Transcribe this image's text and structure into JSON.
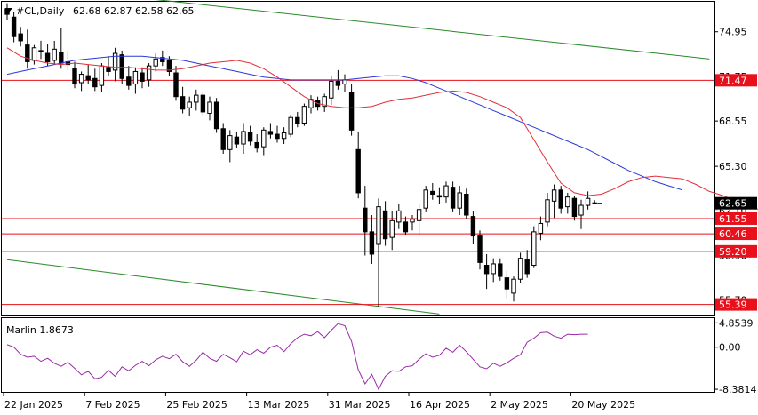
{
  "header": {
    "symbol": "#CL,Daily",
    "ohlc": "62.68 62.87 62.58 62.65"
  },
  "indicator": {
    "name_label": "Marlin 1.8673",
    "axis_ticks": [
      "4.8539",
      "0.00",
      "-8.3814"
    ]
  },
  "colors": {
    "bull_candle": "#ffffff",
    "bear_candle": "#000000",
    "ma_fast": "#e0303a",
    "ma_slow": "#2a38d8",
    "level_line": "#e8101a",
    "channel": "#2a8a2a",
    "oscillator": "#9a2aa8",
    "price_tag_bg": "#000000",
    "level_tag_bg": "#e8101a"
  },
  "chart_data": [
    {
      "type": "candlestick",
      "title": "#CL,Daily",
      "y_ticks": [
        "74.95",
        "71.75",
        "68.55",
        "65.30",
        "62.10",
        "58.90",
        "55.70"
      ],
      "ylim": [
        54.6,
        77.1
      ],
      "x_ticks": [
        "22 Jan 2025",
        "7 Feb 2025",
        "25 Feb 2025",
        "13 Mar 2025",
        "31 Mar 2025",
        "16 Apr 2025",
        "2 May 2025",
        "20 May 2025"
      ],
      "current_price": "62.65",
      "levels": [
        {
          "value": 71.47,
          "label": "71.47"
        },
        {
          "value": 61.55,
          "label": "61.55"
        },
        {
          "value": 60.46,
          "label": "60.46"
        },
        {
          "value": 59.2,
          "label": "59.20"
        },
        {
          "value": 55.39,
          "label": "55.39"
        }
      ],
      "channel_lines": [
        {
          "from": [
            0,
            78.4
          ],
          "to": [
            104,
            73.0
          ]
        },
        {
          "from": [
            0,
            58.6
          ],
          "to": [
            64,
            54.7
          ]
        }
      ],
      "candles": [
        [
          76.6,
          77.0,
          75.8,
          76.2
        ],
        [
          76.0,
          76.4,
          74.2,
          74.6
        ],
        [
          74.8,
          75.3,
          73.9,
          74.3
        ],
        [
          74.0,
          75.1,
          72.3,
          72.8
        ],
        [
          72.9,
          74.0,
          72.6,
          73.8
        ],
        [
          73.6,
          74.3,
          73.0,
          73.5
        ],
        [
          73.4,
          74.1,
          72.5,
          72.8
        ],
        [
          72.9,
          74.3,
          72.6,
          73.7
        ],
        [
          73.5,
          75.2,
          72.3,
          72.7
        ],
        [
          72.8,
          73.6,
          72.2,
          72.6
        ],
        [
          72.3,
          72.8,
          70.9,
          71.2
        ],
        [
          71.3,
          72.1,
          70.7,
          71.9
        ],
        [
          71.8,
          72.6,
          71.2,
          71.5
        ],
        [
          71.6,
          72.3,
          70.7,
          71.0
        ],
        [
          71.1,
          72.7,
          70.6,
          72.5
        ],
        [
          72.4,
          73.2,
          71.8,
          72.1
        ],
        [
          72.2,
          73.8,
          71.4,
          73.4
        ],
        [
          73.3,
          73.6,
          71.2,
          71.6
        ],
        [
          71.7,
          72.5,
          70.8,
          71.1
        ],
        [
          71.2,
          72.4,
          70.5,
          72.1
        ],
        [
          72.0,
          72.4,
          70.9,
          71.4
        ],
        [
          71.5,
          72.7,
          71.0,
          72.5
        ],
        [
          72.5,
          73.4,
          72.1,
          73.0
        ],
        [
          73.1,
          73.6,
          72.5,
          72.8
        ],
        [
          72.9,
          73.2,
          71.8,
          72.1
        ],
        [
          72.0,
          72.5,
          70.0,
          70.3
        ],
        [
          70.3,
          71.0,
          69.1,
          69.4
        ],
        [
          69.5,
          70.3,
          68.9,
          69.9
        ],
        [
          69.9,
          70.8,
          69.3,
          70.4
        ],
        [
          70.4,
          70.6,
          68.9,
          69.2
        ],
        [
          69.1,
          70.3,
          68.6,
          69.9
        ],
        [
          69.9,
          70.2,
          67.7,
          68.0
        ],
        [
          68.0,
          68.4,
          66.2,
          66.5
        ],
        [
          66.5,
          67.9,
          65.6,
          67.5
        ],
        [
          67.4,
          67.8,
          66.6,
          66.9
        ],
        [
          66.9,
          68.4,
          66.2,
          67.8
        ],
        [
          67.7,
          68.2,
          66.8,
          67.1
        ],
        [
          67.0,
          67.6,
          66.3,
          66.6
        ],
        [
          66.7,
          68.1,
          66.1,
          67.9
        ],
        [
          67.8,
          68.4,
          67.3,
          67.6
        ],
        [
          67.6,
          68.2,
          67.0,
          67.3
        ],
        [
          67.3,
          68.1,
          66.9,
          67.7
        ],
        [
          67.6,
          69.0,
          67.4,
          68.8
        ],
        [
          68.8,
          69.2,
          68.1,
          68.4
        ],
        [
          68.4,
          69.8,
          68.2,
          69.6
        ],
        [
          69.5,
          70.4,
          69.1,
          70.1
        ],
        [
          70.0,
          70.3,
          69.3,
          69.6
        ],
        [
          69.6,
          70.5,
          69.2,
          70.3
        ],
        [
          70.2,
          71.8,
          69.7,
          71.4
        ],
        [
          71.4,
          72.2,
          70.8,
          71.1
        ],
        [
          71.2,
          71.9,
          70.6,
          71.5
        ],
        [
          70.6,
          71.2,
          67.5,
          67.9
        ],
        [
          66.5,
          67.8,
          63.0,
          63.4
        ],
        [
          62.3,
          63.9,
          58.9,
          60.6
        ],
        [
          60.6,
          61.8,
          58.3,
          59.0
        ],
        [
          59.7,
          63.0,
          55.2,
          62.4
        ],
        [
          62.1,
          62.8,
          59.6,
          60.1
        ],
        [
          60.2,
          62.1,
          59.3,
          61.4
        ],
        [
          61.3,
          62.6,
          60.8,
          62.1
        ],
        [
          61.3,
          61.7,
          60.4,
          60.6
        ],
        [
          61.3,
          61.8,
          60.7,
          61.5
        ],
        [
          61.4,
          62.6,
          60.4,
          62.2
        ],
        [
          62.3,
          63.9,
          62.0,
          63.6
        ],
        [
          63.5,
          64.1,
          62.9,
          63.3
        ],
        [
          63.2,
          63.8,
          62.6,
          63.1
        ],
        [
          63.1,
          64.2,
          62.7,
          63.9
        ],
        [
          63.8,
          64.2,
          62.0,
          62.3
        ],
        [
          62.3,
          63.9,
          61.8,
          63.4
        ],
        [
          63.3,
          63.7,
          61.5,
          61.8
        ],
        [
          61.7,
          62.1,
          59.7,
          60.3
        ],
        [
          60.3,
          60.7,
          57.9,
          58.4
        ],
        [
          58.2,
          59.0,
          56.5,
          57.6
        ],
        [
          57.6,
          58.7,
          57.0,
          58.3
        ],
        [
          58.3,
          58.7,
          57.1,
          57.4
        ],
        [
          57.3,
          57.8,
          55.8,
          56.5
        ],
        [
          56.2,
          57.4,
          55.6,
          57.2
        ],
        [
          57.2,
          59.1,
          56.9,
          58.7
        ],
        [
          58.6,
          59.3,
          57.3,
          57.6
        ],
        [
          58.2,
          61.0,
          58.0,
          60.6
        ],
        [
          60.5,
          61.7,
          60.0,
          61.2
        ],
        [
          61.3,
          63.4,
          61.0,
          62.9
        ],
        [
          62.8,
          64.0,
          61.6,
          63.6
        ],
        [
          63.6,
          63.9,
          61.9,
          62.3
        ],
        [
          62.4,
          63.4,
          61.9,
          63.1
        ],
        [
          63.0,
          63.2,
          61.4,
          61.7
        ],
        [
          61.8,
          62.9,
          60.8,
          62.5
        ],
        [
          62.5,
          63.5,
          62.2,
          63.0
        ],
        [
          62.68,
          62.87,
          62.58,
          62.65
        ]
      ],
      "ma_fast": [
        73.8,
        73.2,
        72.9,
        72.7,
        72.6,
        72.7,
        72.6,
        72.5,
        72.4,
        72.4,
        72.3,
        72.2,
        72.2,
        72.3,
        72.5,
        72.7,
        72.8,
        72.9,
        72.7,
        72.3,
        71.7,
        71.0,
        70.3,
        69.8,
        69.6,
        69.5,
        69.5,
        69.6,
        69.9,
        70.1,
        70.2,
        70.4,
        70.6,
        70.7,
        70.6,
        70.3,
        69.9,
        69.5,
        68.8,
        67.2,
        65.6,
        64.1,
        63.4,
        63.2,
        63.3,
        63.7,
        64.2,
        64.5,
        64.6,
        64.5,
        64.4,
        64.0,
        63.5,
        63.2,
        62.8,
        62.4,
        62.1,
        62.0,
        62.2,
        62.7,
        63.3,
        63.7,
        63.8,
        63.6,
        63.2
      ],
      "ma_fast_start": 0,
      "ma_slow": [
        71.9,
        72.1,
        72.3,
        72.5,
        72.7,
        72.9,
        73.0,
        73.1,
        73.2,
        73.2,
        73.2,
        73.1,
        73.0,
        72.9,
        72.7,
        72.5,
        72.3,
        72.1,
        71.9,
        71.7,
        71.6,
        71.5,
        71.5,
        71.5,
        71.5,
        71.5,
        71.6,
        71.7,
        71.8,
        71.8,
        71.6,
        71.3,
        70.9,
        70.5,
        70.1,
        69.7,
        69.3,
        68.9,
        68.5,
        68.1,
        67.7,
        67.3,
        66.9,
        66.5,
        66.0,
        65.5,
        65.0,
        64.6,
        64.2,
        63.9,
        63.6
      ],
      "ma_slow_start": 0,
      "ma_stride": 2
    },
    {
      "type": "line",
      "title": "Marlin 1.8673",
      "ylim": [
        -8.9,
        5.8
      ],
      "series": [
        {
          "values": [
            0.5,
            0.0,
            -1.4,
            -2.0,
            -1.8,
            -2.8,
            -2.2,
            -3.2,
            -3.8,
            -3.0,
            -4.2,
            -5.5,
            -4.8,
            -6.3,
            -6.0,
            -4.6,
            -5.8,
            -3.9,
            -4.7,
            -3.6,
            -2.8,
            -3.7,
            -2.5,
            -1.8,
            -2.3,
            -1.4,
            -2.9,
            -3.8,
            -2.6,
            -1.0,
            -2.2,
            -2.8,
            -1.4,
            -2.1,
            -2.9,
            -0.8,
            -1.5,
            -0.5,
            -1.2,
            0.0,
            0.4,
            -0.9,
            0.7,
            1.9,
            2.6,
            2.3,
            3.1,
            1.9,
            3.4,
            4.7,
            4.3,
            1.2,
            -4.5,
            -7.3,
            -5.4,
            -8.4,
            -5.8,
            -4.7,
            -4.8,
            -3.9,
            -3.7,
            -2.4,
            -1.3,
            -2.0,
            -1.6,
            -0.2,
            -1.0,
            0.4,
            -0.9,
            -2.4,
            -3.9,
            -4.3,
            -3.2,
            -3.8,
            -3.1,
            -2.2,
            -1.5,
            1.0,
            1.8,
            2.9,
            3.0,
            2.2,
            1.8,
            2.6,
            2.5,
            2.6,
            2.6
          ]
        }
      ]
    }
  ]
}
